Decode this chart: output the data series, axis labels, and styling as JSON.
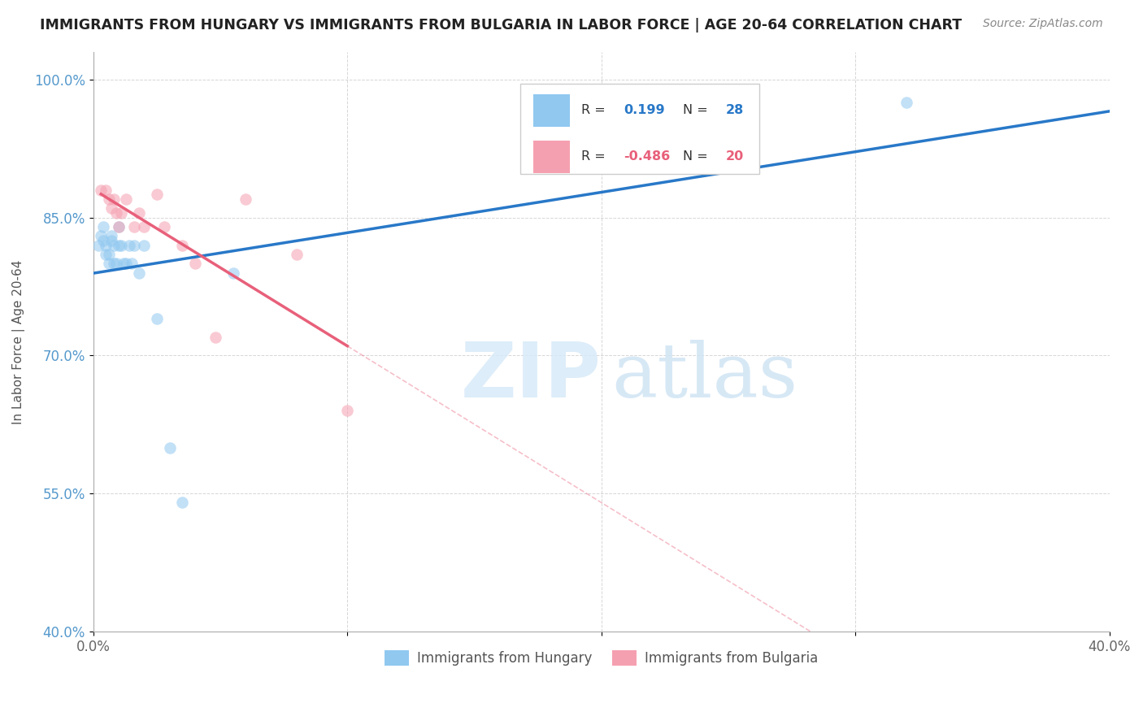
{
  "title": "IMMIGRANTS FROM HUNGARY VS IMMIGRANTS FROM BULGARIA IN LABOR FORCE | AGE 20-64 CORRELATION CHART",
  "source": "Source: ZipAtlas.com",
  "ylabel": "In Labor Force | Age 20-64",
  "xlim": [
    0.0,
    0.4
  ],
  "ylim": [
    0.4,
    1.03
  ],
  "xticks": [
    0.0,
    0.1,
    0.2,
    0.3,
    0.4
  ],
  "xticklabels": [
    "0.0%",
    "",
    "",
    "",
    "40.0%"
  ],
  "yticks": [
    0.4,
    0.55,
    0.7,
    0.85,
    1.0
  ],
  "yticklabels": [
    "40.0%",
    "55.0%",
    "70.0%",
    "85.0%",
    "100.0%"
  ],
  "hungary_x": [
    0.002,
    0.003,
    0.004,
    0.004,
    0.005,
    0.005,
    0.006,
    0.006,
    0.007,
    0.007,
    0.008,
    0.008,
    0.009,
    0.01,
    0.01,
    0.011,
    0.012,
    0.013,
    0.014,
    0.015,
    0.016,
    0.018,
    0.02,
    0.025,
    0.03,
    0.035,
    0.055,
    0.32
  ],
  "hungary_y": [
    0.82,
    0.83,
    0.825,
    0.84,
    0.81,
    0.82,
    0.8,
    0.81,
    0.83,
    0.825,
    0.8,
    0.82,
    0.8,
    0.82,
    0.84,
    0.82,
    0.8,
    0.8,
    0.82,
    0.8,
    0.82,
    0.79,
    0.82,
    0.74,
    0.6,
    0.54,
    0.79,
    0.975
  ],
  "bulgaria_x": [
    0.003,
    0.005,
    0.006,
    0.007,
    0.008,
    0.009,
    0.01,
    0.011,
    0.013,
    0.016,
    0.018,
    0.02,
    0.025,
    0.028,
    0.035,
    0.04,
    0.048,
    0.06,
    0.08,
    0.1
  ],
  "bulgaria_y": [
    0.88,
    0.88,
    0.87,
    0.86,
    0.87,
    0.855,
    0.84,
    0.855,
    0.87,
    0.84,
    0.855,
    0.84,
    0.875,
    0.84,
    0.82,
    0.8,
    0.72,
    0.87,
    0.81,
    0.64
  ],
  "hungary_color": "#90c8f0",
  "bulgaria_color": "#f5a0b0",
  "hungary_line_color": "#2878c8",
  "bulgaria_line_color": "#e8607a",
  "hungary_R": 0.199,
  "hungary_N": 28,
  "bulgaria_R": -0.486,
  "bulgaria_N": 20,
  "marker_size": 110,
  "marker_alpha": 0.55,
  "watermark_zip": "ZIP",
  "watermark_atlas": "atlas",
  "background_color": "#ffffff",
  "grid_color": "#cccccc"
}
